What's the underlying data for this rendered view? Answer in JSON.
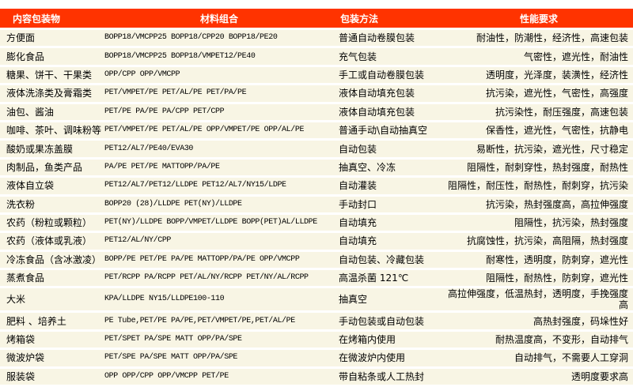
{
  "colors": {
    "header_bg": "#ff3300",
    "header_text": "#ffffff",
    "row_bg": "#f8f5e4"
  },
  "headers": [
    "内容包装物",
    "材料组合",
    "包装方法",
    "性能要求"
  ],
  "rows": [
    [
      "方便面",
      "BOPP18/VMCPP25  BOPP18/CPP20  BOPP18/PE20",
      "普通自动卷膜包装",
      "耐油性，防潮性，经济性，高速包装"
    ],
    [
      "膨化食品",
      "BOPP18/VMCPP25  BOPP18/VMPET12/PE40",
      "充气包装",
      "气密性，遮光性，耐油性"
    ],
    [
      "糖果、饼干、干果类",
      "OPP/CPP OPP/VMCPP",
      "手工或自动卷膜包装",
      "透明度，光泽度，装潢性，经济性"
    ],
    [
      "液体洗涤类及膏霜类",
      "PET/VMPET/PE PET/AL/PE  PET/PA/PE",
      "液体自动填充包装",
      "抗污染，遮光性，气密性，高强度"
    ],
    [
      "油包、酱油",
      "PET/PE  PA/PE PA/CPP PET/CPP",
      "液体自动填充包装",
      "抗污染性，耐压强度，高速包装"
    ],
    [
      "咖啡、茶叶、调味粉等",
      "PET/VMPET/PE PET/AL/PE OPP/VMPET/PE OPP/AL/PE",
      "普通手动\\自动抽真空",
      "保香性，遮光性，气密性，抗静电"
    ],
    [
      "酸奶或果冻盖膜",
      "PET12/AL7/PE40/EVA30",
      "自动包装",
      "易断性，抗污染，遮光性，尺寸稳定"
    ],
    [
      "肉制品，鱼类产品",
      "PA/PE PET/PE MATTOPP/PA/PE",
      "抽真空、冷冻",
      "阻隔性，耐刺穿性，热封强度，耐热性"
    ],
    [
      "液体自立袋",
      "PET12/AL7/PET12/LLDPE PET12/AL7/NY15/LDPE",
      "自动灌装",
      "阻隔性，耐压性，耐热性，耐刺穿，抗污染"
    ],
    [
      "洗衣粉",
      "BOPP20 (28)/LLDPE PET(NY)/LLDPE",
      "手动封口",
      "抗污染，热封强度高，高拉伸强度"
    ],
    [
      "农药（粉粒或颗粒）",
      "PET(NY)/LLDPE BOPP/VMPET/LLDPE BOPP(PET)AL/LLDPE",
      "自动填充",
      "阻隔性，抗污染，热封强度"
    ],
    [
      "农药（液体或乳液）",
      "PET12/AL/NY/CPP",
      "自动填充",
      "抗腐蚀性，抗污染，高阻隔，热封强度"
    ],
    [
      "冷冻食品（含冰激凌）",
      "BOPP/PE PET/PE PA/PE MATTOPP/PA/PE OPP/VMCPP",
      "自动包装、冷藏包装",
      "耐寒性，透明度，防刺穿，遮光性"
    ],
    [
      "蒸煮食品",
      "PET/RCPP PA/RCPP PET/AL/NY/RCPP PET/NY/AL/RCPP",
      "高温杀菌 121℃",
      "阻隔性，耐热性，防刺穿，遮光性"
    ],
    [
      "大米",
      "KPA/LLDPE NY15/LLDPE100-110",
      "抽真空",
      "高拉伸强度，低温热封，透明度，手挽强度高"
    ],
    [
      "肥料 、培养土",
      "PE Tube,PET/PE  PA/PE,PET/VMPET/PE,PET/AL/PE",
      "手动包装或自动包装",
      "高热封强度，码垛性好"
    ],
    [
      "烤箱袋",
      "PET/SPET PA/SPE MATT OPP/PA/SPE",
      "在烤箱内使用",
      "耐热温度高，不变形，自动排气"
    ],
    [
      "微波炉袋",
      "PET/SPE PA/SPE MATT OPP/PA/SPE",
      "在微波炉内使用",
      "自动排气，不需要人工穿洞"
    ],
    [
      "服装袋",
      "OPP  OPP/CPP OPP/VMCPP PET/PE",
      "带自粘条或人工热封",
      "透明度要求高"
    ]
  ]
}
